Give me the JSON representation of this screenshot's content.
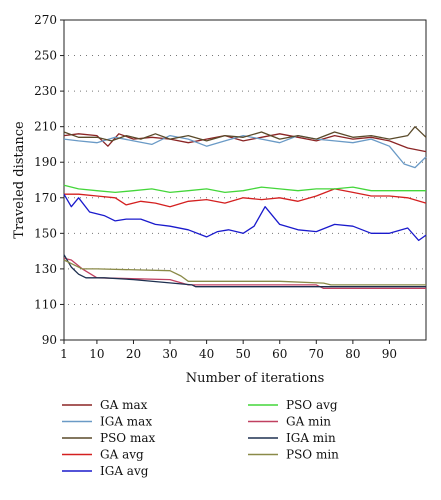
{
  "chart_data": {
    "type": "line",
    "title": "",
    "xlabel": "Number of iterations",
    "ylabel": "Traveled distance",
    "xlim": [
      1,
      100
    ],
    "ylim": [
      90,
      270
    ],
    "x_ticks": [
      1,
      10,
      20,
      30,
      40,
      50,
      60,
      70,
      80,
      90
    ],
    "y_ticks": [
      90,
      110,
      130,
      150,
      170,
      190,
      210,
      230,
      250,
      270
    ],
    "grid": "horizontal dotted",
    "legend_position": "bottom, two columns",
    "series": [
      {
        "name": "GA max",
        "color": "#8b2525",
        "points": [
          [
            1,
            205
          ],
          [
            5,
            206
          ],
          [
            10,
            205
          ],
          [
            13,
            199
          ],
          [
            16,
            206
          ],
          [
            20,
            203
          ],
          [
            25,
            204
          ],
          [
            30,
            203
          ],
          [
            35,
            201
          ],
          [
            40,
            203
          ],
          [
            45,
            205
          ],
          [
            50,
            202
          ],
          [
            55,
            204
          ],
          [
            60,
            206
          ],
          [
            65,
            204
          ],
          [
            70,
            202
          ],
          [
            75,
            205
          ],
          [
            80,
            203
          ],
          [
            85,
            204
          ],
          [
            90,
            202
          ],
          [
            95,
            198
          ],
          [
            100,
            196
          ]
        ]
      },
      {
        "name": "IGA max",
        "color": "#6a9ac6",
        "points": [
          [
            1,
            203
          ],
          [
            5,
            202
          ],
          [
            10,
            201
          ],
          [
            15,
            204
          ],
          [
            20,
            202
          ],
          [
            25,
            200
          ],
          [
            30,
            205
          ],
          [
            35,
            203
          ],
          [
            40,
            199
          ],
          [
            45,
            202
          ],
          [
            50,
            205
          ],
          [
            55,
            203
          ],
          [
            60,
            201
          ],
          [
            65,
            205
          ],
          [
            70,
            203
          ],
          [
            75,
            202
          ],
          [
            80,
            201
          ],
          [
            85,
            203
          ],
          [
            90,
            199
          ],
          [
            94,
            189
          ],
          [
            97,
            187
          ],
          [
            100,
            193
          ]
        ]
      },
      {
        "name": "PSO max",
        "color": "#5a4a2a",
        "points": [
          [
            1,
            207
          ],
          [
            5,
            204
          ],
          [
            10,
            204
          ],
          [
            14,
            202
          ],
          [
            18,
            205
          ],
          [
            22,
            203
          ],
          [
            26,
            206
          ],
          [
            30,
            203
          ],
          [
            35,
            205
          ],
          [
            40,
            202
          ],
          [
            45,
            205
          ],
          [
            50,
            204
          ],
          [
            55,
            207
          ],
          [
            60,
            203
          ],
          [
            65,
            205
          ],
          [
            70,
            203
          ],
          [
            75,
            207
          ],
          [
            80,
            204
          ],
          [
            85,
            205
          ],
          [
            90,
            203
          ],
          [
            95,
            205
          ],
          [
            97,
            210
          ],
          [
            100,
            204
          ]
        ]
      },
      {
        "name": "GA avg",
        "color": "#d42020",
        "points": [
          [
            1,
            172
          ],
          [
            5,
            172
          ],
          [
            10,
            171
          ],
          [
            15,
            170
          ],
          [
            18,
            166
          ],
          [
            22,
            168
          ],
          [
            26,
            167
          ],
          [
            30,
            165
          ],
          [
            35,
            168
          ],
          [
            40,
            169
          ],
          [
            45,
            167
          ],
          [
            50,
            170
          ],
          [
            55,
            169
          ],
          [
            60,
            170
          ],
          [
            65,
            168
          ],
          [
            70,
            171
          ],
          [
            75,
            175
          ],
          [
            80,
            173
          ],
          [
            85,
            171
          ],
          [
            90,
            171
          ],
          [
            95,
            170
          ],
          [
            100,
            167
          ]
        ]
      },
      {
        "name": "IGA avg",
        "color": "#1a1acc",
        "points": [
          [
            1,
            172
          ],
          [
            3,
            165
          ],
          [
            5,
            170
          ],
          [
            8,
            162
          ],
          [
            12,
            160
          ],
          [
            15,
            157
          ],
          [
            18,
            158
          ],
          [
            22,
            158
          ],
          [
            26,
            155
          ],
          [
            30,
            154
          ],
          [
            35,
            152
          ],
          [
            40,
            148
          ],
          [
            43,
            151
          ],
          [
            46,
            152
          ],
          [
            50,
            150
          ],
          [
            53,
            154
          ],
          [
            56,
            165
          ],
          [
            60,
            155
          ],
          [
            65,
            152
          ],
          [
            70,
            151
          ],
          [
            75,
            155
          ],
          [
            80,
            154
          ],
          [
            85,
            150
          ],
          [
            90,
            150
          ],
          [
            95,
            153
          ],
          [
            98,
            146
          ],
          [
            100,
            149
          ]
        ]
      },
      {
        "name": "PSO avg",
        "color": "#44d63a",
        "points": [
          [
            1,
            177
          ],
          [
            5,
            175
          ],
          [
            10,
            174
          ],
          [
            15,
            173
          ],
          [
            20,
            174
          ],
          [
            25,
            175
          ],
          [
            30,
            173
          ],
          [
            35,
            174
          ],
          [
            40,
            175
          ],
          [
            45,
            173
          ],
          [
            50,
            174
          ],
          [
            55,
            176
          ],
          [
            60,
            175
          ],
          [
            65,
            174
          ],
          [
            70,
            175
          ],
          [
            75,
            175
          ],
          [
            80,
            176
          ],
          [
            85,
            174
          ],
          [
            90,
            174
          ],
          [
            95,
            174
          ],
          [
            100,
            174
          ]
        ]
      },
      {
        "name": "GA min",
        "color": "#c04060",
        "points": [
          [
            1,
            136
          ],
          [
            3,
            135
          ],
          [
            6,
            130
          ],
          [
            10,
            125
          ],
          [
            30,
            124
          ],
          [
            35,
            121
          ],
          [
            50,
            121
          ],
          [
            70,
            121
          ],
          [
            72,
            119
          ],
          [
            100,
            119
          ]
        ]
      },
      {
        "name": "IGA min",
        "color": "#1e3050",
        "points": [
          [
            1,
            138
          ],
          [
            3,
            131
          ],
          [
            5,
            127
          ],
          [
            7,
            125
          ],
          [
            12,
            125
          ],
          [
            20,
            124
          ],
          [
            36,
            121
          ],
          [
            37,
            120
          ],
          [
            100,
            120
          ]
        ]
      },
      {
        "name": "PSO min",
        "color": "#8a8a48",
        "points": [
          [
            1,
            135
          ],
          [
            3,
            133
          ],
          [
            6,
            130
          ],
          [
            10,
            130
          ],
          [
            30,
            129
          ],
          [
            33,
            126
          ],
          [
            35,
            123
          ],
          [
            60,
            123
          ],
          [
            72,
            122
          ],
          [
            74,
            121
          ],
          [
            100,
            121
          ]
        ]
      }
    ]
  }
}
